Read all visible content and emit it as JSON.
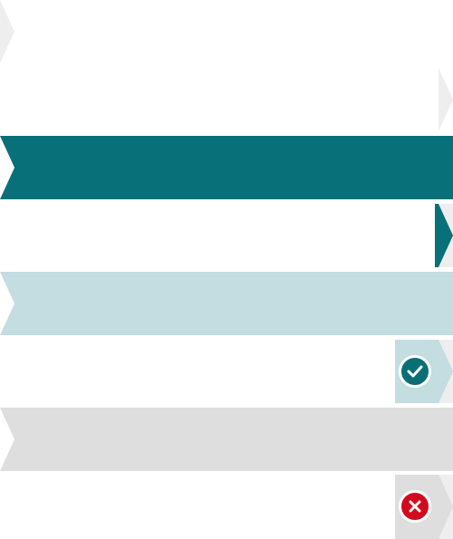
{
  "colors": {
    "teal": "#087079",
    "light_teal": "#c3dde1",
    "light_gray": "#dedede",
    "pale_gray": "#eeeeee",
    "white": "#ffffff",
    "success_green": "#0a6f75",
    "error_red": "#d20a1e"
  },
  "rows": [
    {
      "name": "row-1",
      "style": "white",
      "marker": "left-chevron"
    },
    {
      "name": "row-2",
      "style": "white",
      "marker": "right-chevron-pale"
    },
    {
      "name": "row-3",
      "style": "teal-banner",
      "marker": "left-chevron"
    },
    {
      "name": "row-4",
      "style": "white",
      "marker": "right-chevron-teal"
    },
    {
      "name": "row-5",
      "style": "light-teal-banner",
      "marker": "left-chevron"
    },
    {
      "name": "row-6",
      "style": "white",
      "marker": "right-tab",
      "icon": "check-circle-icon",
      "status": "success"
    },
    {
      "name": "row-7",
      "style": "gray-banner",
      "marker": "left-chevron"
    },
    {
      "name": "row-8",
      "style": "white",
      "marker": "right-tab",
      "icon": "close-circle-icon",
      "status": "error"
    }
  ]
}
